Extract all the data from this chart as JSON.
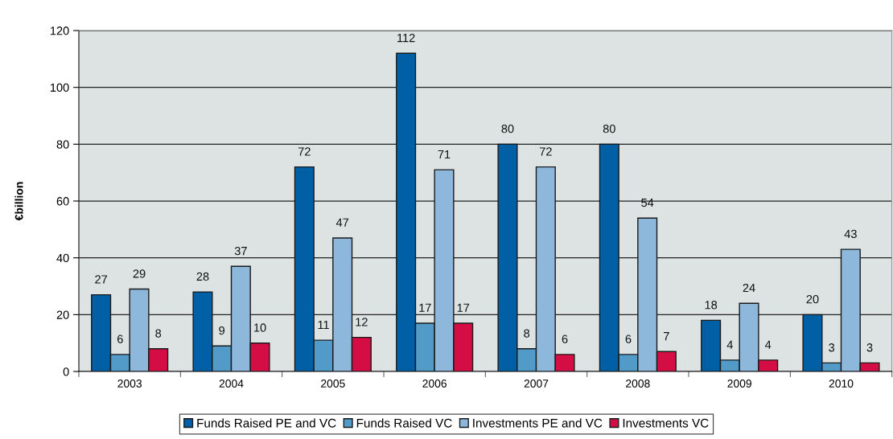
{
  "chart_data": {
    "type": "bar",
    "ylabel": "€billion",
    "categories": [
      "2003",
      "2004",
      "2005",
      "2006",
      "2007",
      "2008",
      "2009",
      "2010"
    ],
    "series": [
      {
        "name": "Funds Raised PE and VC",
        "color": "#005fa5",
        "values": [
          27,
          28,
          72,
          112,
          80,
          80,
          18,
          20
        ]
      },
      {
        "name": "Funds Raised VC",
        "color": "#529bc9",
        "values": [
          6,
          9,
          11,
          17,
          8,
          6,
          4,
          3
        ]
      },
      {
        "name": "Investments PE and VC",
        "color": "#8db7db",
        "values": [
          29,
          37,
          47,
          71,
          72,
          54,
          24,
          43
        ]
      },
      {
        "name": "Investments VC",
        "color": "#d40e45",
        "values": [
          8,
          10,
          12,
          17,
          6,
          7,
          4,
          3
        ]
      }
    ],
    "ylim": [
      0,
      120
    ],
    "yticks": [
      0,
      20,
      40,
      60,
      80,
      100,
      120
    ],
    "data_labels": true,
    "grid": "y",
    "legend": "bottom"
  }
}
